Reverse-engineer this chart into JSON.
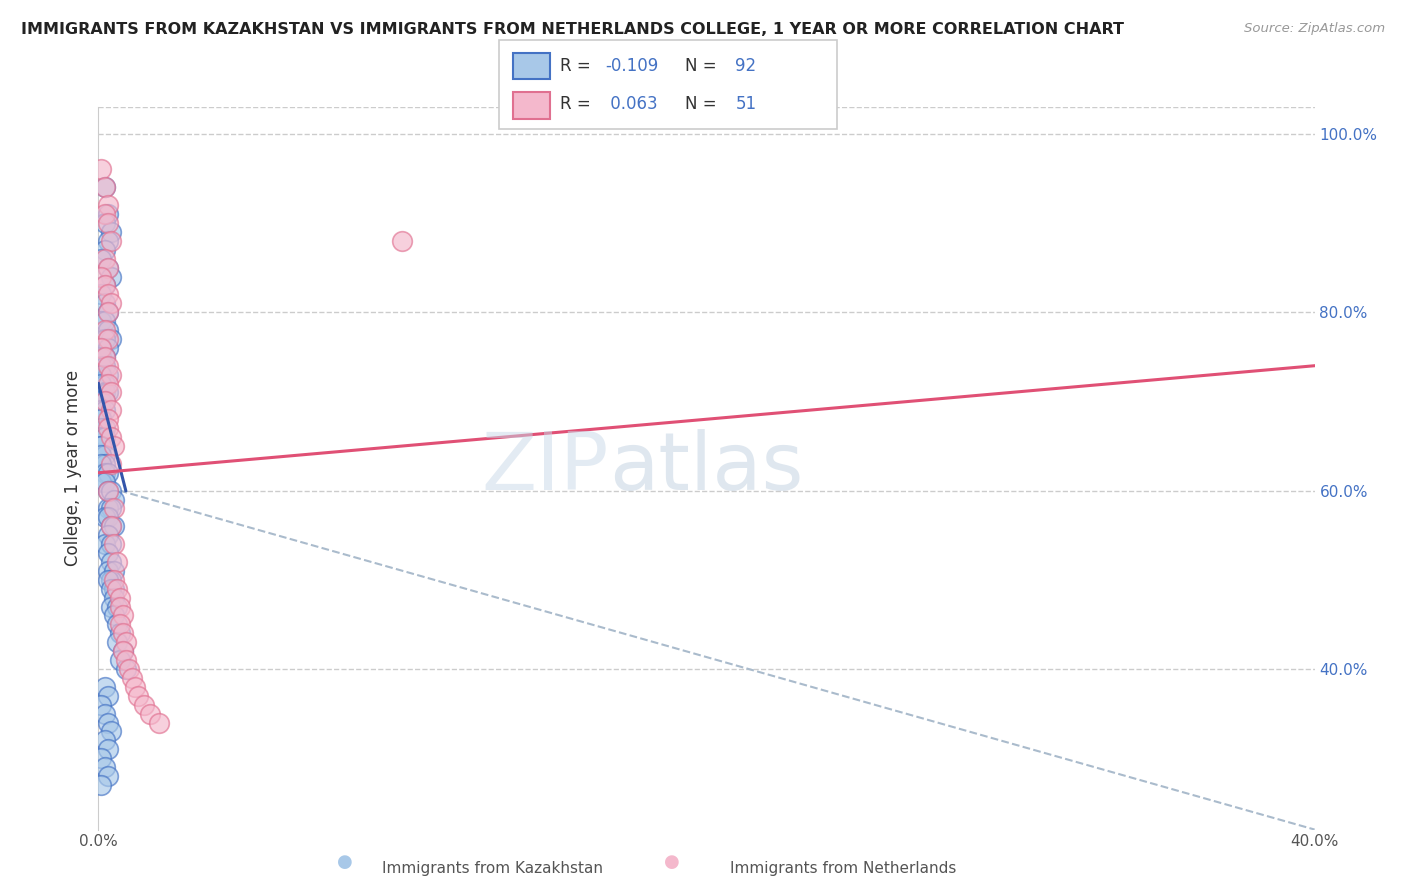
{
  "title": "IMMIGRANTS FROM KAZAKHSTAN VS IMMIGRANTS FROM NETHERLANDS COLLEGE, 1 YEAR OR MORE CORRELATION CHART",
  "source": "Source: ZipAtlas.com",
  "ylabel": "College, 1 year or more",
  "legend_kaz": "Immigrants from Kazakhstan",
  "legend_neth": "Immigrants from Netherlands",
  "R_kaz": -0.109,
  "N_kaz": 92,
  "R_neth": 0.063,
  "N_neth": 51,
  "color_kaz_fill": "#a8c8e8",
  "color_kaz_edge": "#4472c4",
  "color_neth_fill": "#f4b8cc",
  "color_neth_edge": "#e07090",
  "color_line_kaz": "#3355aa",
  "color_line_neth": "#e05075",
  "color_gray": "#aabbcc",
  "kaz_x": [
    0.002,
    0.003,
    0.002,
    0.004,
    0.003,
    0.002,
    0.001,
    0.003,
    0.004,
    0.002,
    0.001,
    0.002,
    0.003,
    0.001,
    0.002,
    0.003,
    0.004,
    0.002,
    0.001,
    0.003,
    0.001,
    0.002,
    0.001,
    0.002,
    0.003,
    0.001,
    0.002,
    0.001,
    0.002,
    0.003,
    0.001,
    0.002,
    0.001,
    0.002,
    0.001,
    0.001,
    0.002,
    0.001,
    0.001,
    0.002,
    0.001,
    0.001,
    0.002,
    0.001,
    0.002,
    0.001,
    0.002,
    0.003,
    0.001,
    0.002,
    0.003,
    0.004,
    0.005,
    0.003,
    0.004,
    0.002,
    0.003,
    0.004,
    0.005,
    0.003,
    0.002,
    0.004,
    0.003,
    0.004,
    0.003,
    0.005,
    0.004,
    0.003,
    0.005,
    0.004,
    0.005,
    0.004,
    0.006,
    0.005,
    0.006,
    0.007,
    0.006,
    0.008,
    0.007,
    0.009,
    0.002,
    0.003,
    0.001,
    0.002,
    0.003,
    0.004,
    0.002,
    0.003,
    0.001,
    0.002,
    0.003,
    0.001
  ],
  "kaz_y": [
    0.94,
    0.91,
    0.9,
    0.89,
    0.88,
    0.87,
    0.86,
    0.85,
    0.84,
    0.83,
    0.82,
    0.81,
    0.8,
    0.79,
    0.79,
    0.78,
    0.77,
    0.77,
    0.76,
    0.76,
    0.75,
    0.75,
    0.74,
    0.74,
    0.73,
    0.73,
    0.72,
    0.72,
    0.71,
    0.71,
    0.7,
    0.7,
    0.69,
    0.69,
    0.68,
    0.68,
    0.67,
    0.67,
    0.66,
    0.66,
    0.65,
    0.65,
    0.64,
    0.64,
    0.63,
    0.63,
    0.62,
    0.62,
    0.61,
    0.61,
    0.6,
    0.6,
    0.59,
    0.58,
    0.58,
    0.57,
    0.57,
    0.56,
    0.56,
    0.55,
    0.54,
    0.54,
    0.53,
    0.52,
    0.51,
    0.51,
    0.5,
    0.5,
    0.49,
    0.49,
    0.48,
    0.47,
    0.47,
    0.46,
    0.45,
    0.44,
    0.43,
    0.42,
    0.41,
    0.4,
    0.38,
    0.37,
    0.36,
    0.35,
    0.34,
    0.33,
    0.32,
    0.31,
    0.3,
    0.29,
    0.28,
    0.27
  ],
  "neth_x": [
    0.001,
    0.002,
    0.003,
    0.002,
    0.003,
    0.004,
    0.002,
    0.003,
    0.001,
    0.002,
    0.003,
    0.004,
    0.003,
    0.002,
    0.003,
    0.001,
    0.002,
    0.003,
    0.004,
    0.003,
    0.004,
    0.002,
    0.004,
    0.003,
    0.003,
    0.004,
    0.005,
    0.004,
    0.003,
    0.005,
    0.004,
    0.005,
    0.006,
    0.005,
    0.006,
    0.007,
    0.007,
    0.008,
    0.007,
    0.008,
    0.009,
    0.008,
    0.009,
    0.01,
    0.011,
    0.012,
    0.013,
    0.015,
    0.017,
    0.02,
    0.1
  ],
  "neth_y": [
    0.96,
    0.94,
    0.92,
    0.91,
    0.9,
    0.88,
    0.86,
    0.85,
    0.84,
    0.83,
    0.82,
    0.81,
    0.8,
    0.78,
    0.77,
    0.76,
    0.75,
    0.74,
    0.73,
    0.72,
    0.71,
    0.7,
    0.69,
    0.68,
    0.67,
    0.66,
    0.65,
    0.63,
    0.6,
    0.58,
    0.56,
    0.54,
    0.52,
    0.5,
    0.49,
    0.48,
    0.47,
    0.46,
    0.45,
    0.44,
    0.43,
    0.42,
    0.41,
    0.4,
    0.39,
    0.38,
    0.37,
    0.36,
    0.35,
    0.34,
    0.88
  ],
  "xlim": [
    0.0,
    0.4
  ],
  "ylim": [
    0.22,
    1.03
  ],
  "yticks": [
    0.4,
    0.6,
    0.8,
    1.0
  ],
  "ytick_labels": [
    "40.0%",
    "60.0%",
    "80.0%",
    "100.0%"
  ],
  "kaz_trend_x0": 0.0,
  "kaz_trend_x1": 0.009,
  "kaz_trend_y0": 0.72,
  "kaz_trend_y1": 0.6,
  "neth_trend_x0": 0.0,
  "neth_trend_x1": 0.4,
  "neth_trend_y0": 0.62,
  "neth_trend_y1": 0.74,
  "gray_trend_x0": 0.007,
  "gray_trend_x1": 0.4,
  "gray_trend_y0": 0.6,
  "gray_trend_y1": 0.22
}
